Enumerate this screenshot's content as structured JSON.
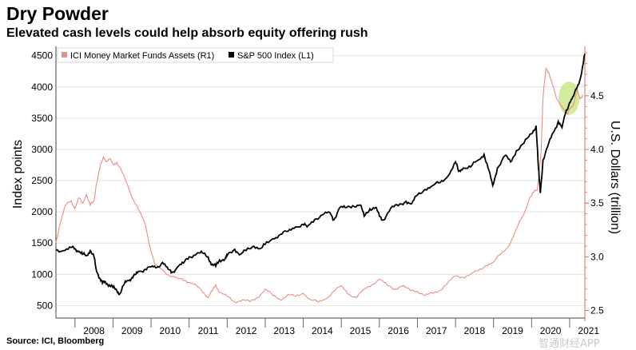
{
  "title": "Dry Powder",
  "subtitle": "Elevated cash levels could help absorb equity offering rush",
  "source": "Source: ICI, Bloomberg",
  "watermark": "智通财经APP",
  "colors": {
    "sp500": "#000000",
    "mmf": "#f08a84",
    "highlight": "#c4e67a",
    "axis_right": "#e06a62"
  },
  "chart_data": {
    "type": "line",
    "title": "Dry Powder",
    "x_ticks": [
      "2008",
      "2009",
      "2010",
      "2011",
      "2012",
      "2013",
      "2014",
      "2015",
      "2016",
      "2017",
      "2018",
      "2019",
      "2020",
      "2021"
    ],
    "xlim": [
      2007.5,
      2021.4
    ],
    "left_axis": {
      "label": "Index points",
      "ticks": [
        500,
        1000,
        1500,
        2000,
        2500,
        3000,
        3500,
        4000,
        4500
      ],
      "range": [
        300,
        4650
      ]
    },
    "right_axis": {
      "label": "U.S. Dollars (trillion)",
      "ticks": [
        "2.5",
        "3.0",
        "3.5",
        "4.0",
        "4.5"
      ],
      "tick_values": [
        2.5,
        3.0,
        3.5,
        4.0,
        4.5
      ],
      "range": [
        2.43,
        4.96
      ]
    },
    "annotation": "Highlighted recent money market fund assets",
    "series": [
      {
        "name": "ICI Money Market Funds Assets (R1)",
        "axis": "right",
        "points": [
          [
            2007.5,
            3.13
          ],
          [
            2007.6,
            3.3
          ],
          [
            2007.75,
            3.48
          ],
          [
            2007.9,
            3.52
          ],
          [
            2008.0,
            3.45
          ],
          [
            2008.1,
            3.55
          ],
          [
            2008.2,
            3.5
          ],
          [
            2008.3,
            3.58
          ],
          [
            2008.4,
            3.48
          ],
          [
            2008.5,
            3.52
          ],
          [
            2008.55,
            3.65
          ],
          [
            2008.65,
            3.82
          ],
          [
            2008.75,
            3.93
          ],
          [
            2008.83,
            3.89
          ],
          [
            2008.92,
            3.91
          ],
          [
            2009.0,
            3.86
          ],
          [
            2009.1,
            3.88
          ],
          [
            2009.25,
            3.78
          ],
          [
            2009.4,
            3.65
          ],
          [
            2009.55,
            3.52
          ],
          [
            2009.7,
            3.42
          ],
          [
            2009.85,
            3.3
          ],
          [
            2010.0,
            3.05
          ],
          [
            2010.1,
            2.93
          ],
          [
            2010.3,
            2.88
          ],
          [
            2010.5,
            2.82
          ],
          [
            2010.7,
            2.8
          ],
          [
            2010.9,
            2.78
          ],
          [
            2011.0,
            2.76
          ],
          [
            2011.2,
            2.73
          ],
          [
            2011.4,
            2.66
          ],
          [
            2011.5,
            2.62
          ],
          [
            2011.6,
            2.68
          ],
          [
            2011.7,
            2.74
          ],
          [
            2011.8,
            2.67
          ],
          [
            2012.0,
            2.63
          ],
          [
            2012.2,
            2.58
          ],
          [
            2012.4,
            2.6
          ],
          [
            2012.6,
            2.58
          ],
          [
            2012.8,
            2.62
          ],
          [
            2013.0,
            2.7
          ],
          [
            2013.2,
            2.64
          ],
          [
            2013.4,
            2.6
          ],
          [
            2013.6,
            2.65
          ],
          [
            2013.8,
            2.63
          ],
          [
            2014.0,
            2.66
          ],
          [
            2014.2,
            2.6
          ],
          [
            2014.4,
            2.58
          ],
          [
            2014.6,
            2.61
          ],
          [
            2014.8,
            2.68
          ],
          [
            2015.0,
            2.73
          ],
          [
            2015.2,
            2.65
          ],
          [
            2015.4,
            2.62
          ],
          [
            2015.6,
            2.7
          ],
          [
            2015.8,
            2.74
          ],
          [
            2016.0,
            2.79
          ],
          [
            2016.2,
            2.74
          ],
          [
            2016.4,
            2.7
          ],
          [
            2016.6,
            2.73
          ],
          [
            2016.8,
            2.69
          ],
          [
            2017.0,
            2.68
          ],
          [
            2017.2,
            2.64
          ],
          [
            2017.4,
            2.66
          ],
          [
            2017.6,
            2.69
          ],
          [
            2017.8,
            2.76
          ],
          [
            2018.0,
            2.82
          ],
          [
            2018.2,
            2.81
          ],
          [
            2018.4,
            2.84
          ],
          [
            2018.6,
            2.87
          ],
          [
            2018.8,
            2.92
          ],
          [
            2019.0,
            2.95
          ],
          [
            2019.2,
            3.03
          ],
          [
            2019.4,
            3.1
          ],
          [
            2019.6,
            3.26
          ],
          [
            2019.8,
            3.4
          ],
          [
            2019.95,
            3.55
          ],
          [
            2020.05,
            3.6
          ],
          [
            2020.15,
            3.62
          ],
          [
            2020.25,
            3.98
          ],
          [
            2020.3,
            4.48
          ],
          [
            2020.38,
            4.76
          ],
          [
            2020.45,
            4.72
          ],
          [
            2020.55,
            4.6
          ],
          [
            2020.65,
            4.48
          ],
          [
            2020.8,
            4.4
          ],
          [
            2020.95,
            4.33
          ],
          [
            2021.0,
            4.38
          ],
          [
            2021.1,
            4.42
          ],
          [
            2021.2,
            4.55
          ],
          [
            2021.27,
            4.47
          ],
          [
            2021.35,
            4.51
          ]
        ]
      },
      {
        "name": "S&P 500 Index (L1)",
        "axis": "left",
        "points": [
          [
            2007.5,
            1390
          ],
          [
            2007.7,
            1380
          ],
          [
            2007.9,
            1430
          ],
          [
            2008.0,
            1410
          ],
          [
            2008.1,
            1370
          ],
          [
            2008.2,
            1320
          ],
          [
            2008.3,
            1300
          ],
          [
            2008.4,
            1380
          ],
          [
            2008.5,
            1280
          ],
          [
            2008.55,
            1100
          ],
          [
            2008.65,
            940
          ],
          [
            2008.72,
            860
          ],
          [
            2008.8,
            880
          ],
          [
            2008.9,
            830
          ],
          [
            2009.0,
            790
          ],
          [
            2009.1,
            740
          ],
          [
            2009.18,
            690
          ],
          [
            2009.3,
            850
          ],
          [
            2009.4,
            900
          ],
          [
            2009.5,
            950
          ],
          [
            2009.6,
            1000
          ],
          [
            2009.7,
            1050
          ],
          [
            2009.85,
            1080
          ],
          [
            2010.0,
            1120
          ],
          [
            2010.15,
            1110
          ],
          [
            2010.3,
            1190
          ],
          [
            2010.45,
            1080
          ],
          [
            2010.55,
            1030
          ],
          [
            2010.7,
            1120
          ],
          [
            2010.85,
            1180
          ],
          [
            2011.0,
            1280
          ],
          [
            2011.2,
            1330
          ],
          [
            2011.35,
            1340
          ],
          [
            2011.5,
            1280
          ],
          [
            2011.6,
            1150
          ],
          [
            2011.7,
            1130
          ],
          [
            2011.8,
            1230
          ],
          [
            2011.95,
            1250
          ],
          [
            2012.0,
            1300
          ],
          [
            2012.2,
            1400
          ],
          [
            2012.35,
            1320
          ],
          [
            2012.5,
            1380
          ],
          [
            2012.7,
            1450
          ],
          [
            2012.9,
            1420
          ],
          [
            2013.0,
            1480
          ],
          [
            2013.2,
            1570
          ],
          [
            2013.4,
            1640
          ],
          [
            2013.6,
            1690
          ],
          [
            2013.8,
            1760
          ],
          [
            2014.0,
            1800
          ],
          [
            2014.1,
            1760
          ],
          [
            2014.3,
            1880
          ],
          [
            2014.5,
            1950
          ],
          [
            2014.7,
            1990
          ],
          [
            2014.8,
            1870
          ],
          [
            2014.95,
            2060
          ],
          [
            2015.1,
            2070
          ],
          [
            2015.3,
            2100
          ],
          [
            2015.5,
            2110
          ],
          [
            2015.6,
            1930
          ],
          [
            2015.75,
            2050
          ],
          [
            2015.9,
            2070
          ],
          [
            2016.0,
            1930
          ],
          [
            2016.1,
            1870
          ],
          [
            2016.3,
            2060
          ],
          [
            2016.5,
            2100
          ],
          [
            2016.7,
            2170
          ],
          [
            2016.85,
            2130
          ],
          [
            2017.0,
            2270
          ],
          [
            2017.2,
            2360
          ],
          [
            2017.4,
            2420
          ],
          [
            2017.6,
            2470
          ],
          [
            2017.8,
            2570
          ],
          [
            2018.0,
            2800
          ],
          [
            2018.08,
            2650
          ],
          [
            2018.2,
            2700
          ],
          [
            2018.4,
            2720
          ],
          [
            2018.6,
            2830
          ],
          [
            2018.75,
            2920
          ],
          [
            2018.85,
            2710
          ],
          [
            2018.98,
            2420
          ],
          [
            2019.1,
            2700
          ],
          [
            2019.3,
            2900
          ],
          [
            2019.45,
            2800
          ],
          [
            2019.6,
            2980
          ],
          [
            2019.8,
            3100
          ],
          [
            2020.0,
            3250
          ],
          [
            2020.12,
            3380
          ],
          [
            2020.18,
            2700
          ],
          [
            2020.23,
            2300
          ],
          [
            2020.3,
            2830
          ],
          [
            2020.45,
            3100
          ],
          [
            2020.6,
            3300
          ],
          [
            2020.7,
            3450
          ],
          [
            2020.8,
            3350
          ],
          [
            2020.9,
            3600
          ],
          [
            2021.0,
            3750
          ],
          [
            2021.1,
            3850
          ],
          [
            2021.2,
            4000
          ],
          [
            2021.3,
            4180
          ],
          [
            2021.4,
            4530
          ]
        ]
      }
    ]
  }
}
